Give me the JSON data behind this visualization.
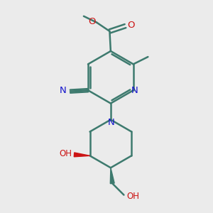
{
  "background_color": "#ebebeb",
  "bond_color": "#3d7a6e",
  "bond_width": 1.8,
  "atom_colors": {
    "N": "#1414cc",
    "O": "#cc1414",
    "C": "#3d7a6e"
  },
  "figsize": [
    3.0,
    3.0
  ],
  "dpi": 100
}
